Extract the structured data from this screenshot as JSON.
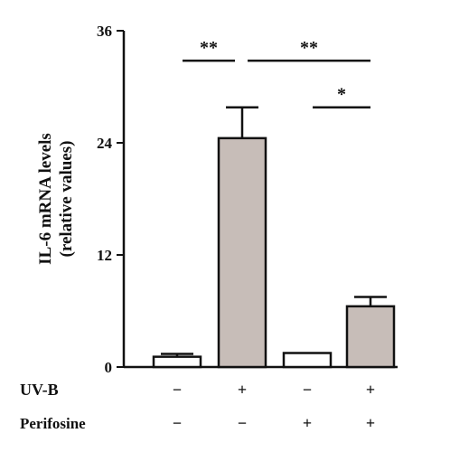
{
  "chart_data": {
    "type": "bar",
    "ylabel_line1": "IL-6 mRNA levels",
    "ylabel_line2": "(relative values)",
    "ylim": [
      0,
      36
    ],
    "yticks": [
      "0",
      "12",
      "24",
      "36"
    ],
    "ytick_values": [
      0,
      12,
      24,
      36
    ],
    "bars": [
      {
        "value": 1.1,
        "error": 0.3,
        "fill": "#ffffff"
      },
      {
        "value": 24.5,
        "error": 3.3,
        "fill": "#c7bdb8"
      },
      {
        "value": 1.5,
        "error": 0.0,
        "fill": "#ffffff"
      },
      {
        "value": 6.5,
        "error": 1.0,
        "fill": "#c7bdb8"
      }
    ],
    "conditions": [
      {
        "label": "UV-B",
        "signs": [
          "−",
          "+",
          "−",
          "+"
        ]
      },
      {
        "label": "Perifosine",
        "signs": [
          "−",
          "−",
          "+",
          "+"
        ]
      }
    ],
    "significance": [
      {
        "from": 0,
        "to": 1,
        "label": "**",
        "level": 32.8
      },
      {
        "from": 1,
        "to": 3,
        "label": "**",
        "level": 32.8
      },
      {
        "from": 2,
        "to": 3,
        "label": "*",
        "level": 27.8
      }
    ]
  }
}
